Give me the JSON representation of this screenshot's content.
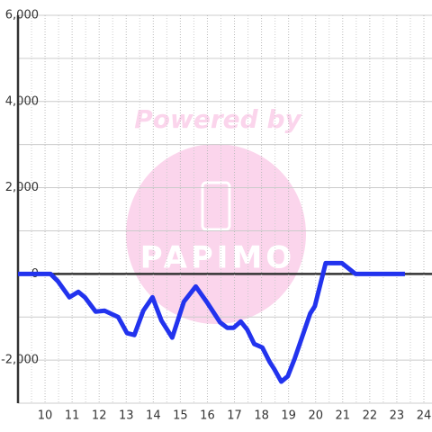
{
  "chart_data": {
    "type": "line",
    "watermark": "Powered by",
    "watermark_logo": "PAPIMO",
    "x": [
      9.0,
      10.2,
      10.47,
      10.9,
      11.23,
      11.47,
      11.87,
      12.2,
      12.7,
      13.03,
      13.3,
      13.63,
      13.97,
      14.3,
      14.7,
      15.13,
      15.57,
      15.97,
      16.47,
      16.73,
      16.97,
      17.23,
      17.47,
      17.73,
      18.03,
      18.3,
      18.47,
      18.73,
      18.97,
      19.23,
      19.8,
      19.97,
      20.17,
      20.37,
      20.97,
      21.47,
      23.3
    ],
    "series": [
      {
        "color": "#2233ee",
        "values": [
          0,
          0,
          -167,
          -542,
          -417,
          -542,
          -875,
          -854,
          -1000,
          -1375,
          -1417,
          -854,
          -542,
          -1083,
          -1479,
          -646,
          -292,
          -646,
          -1125,
          -1250,
          -1250,
          -1104,
          -1292,
          -1625,
          -1708,
          -2042,
          -2208,
          -2500,
          -2375,
          -1958,
          -917,
          -750,
          -250,
          250,
          250,
          0,
          0
        ]
      }
    ],
    "xlim": [
      9,
      24.3
    ],
    "ylim": [
      -3000,
      6000
    ],
    "xticks": [
      10,
      11,
      12,
      13,
      14,
      15,
      16,
      17,
      18,
      19,
      20,
      21,
      22,
      23,
      24
    ],
    "x_minor_ticks": [
      9.5,
      10.5,
      11.5,
      12.5,
      13.5,
      14.5,
      15.5,
      16.5,
      17.5,
      18.5,
      19.5,
      20.5,
      21.5,
      22.5,
      23.5
    ],
    "yticks": [
      {
        "value": -2000,
        "label": "-2,000"
      },
      0,
      {
        "value": 2000,
        "label": "2,000"
      },
      {
        "value": 4000,
        "label": "4,000"
      },
      {
        "value": 6000,
        "label": "6,000"
      }
    ],
    "y_minor_ticks": [
      -3000,
      -1000,
      1000,
      3000,
      5000
    ],
    "grid": true
  }
}
